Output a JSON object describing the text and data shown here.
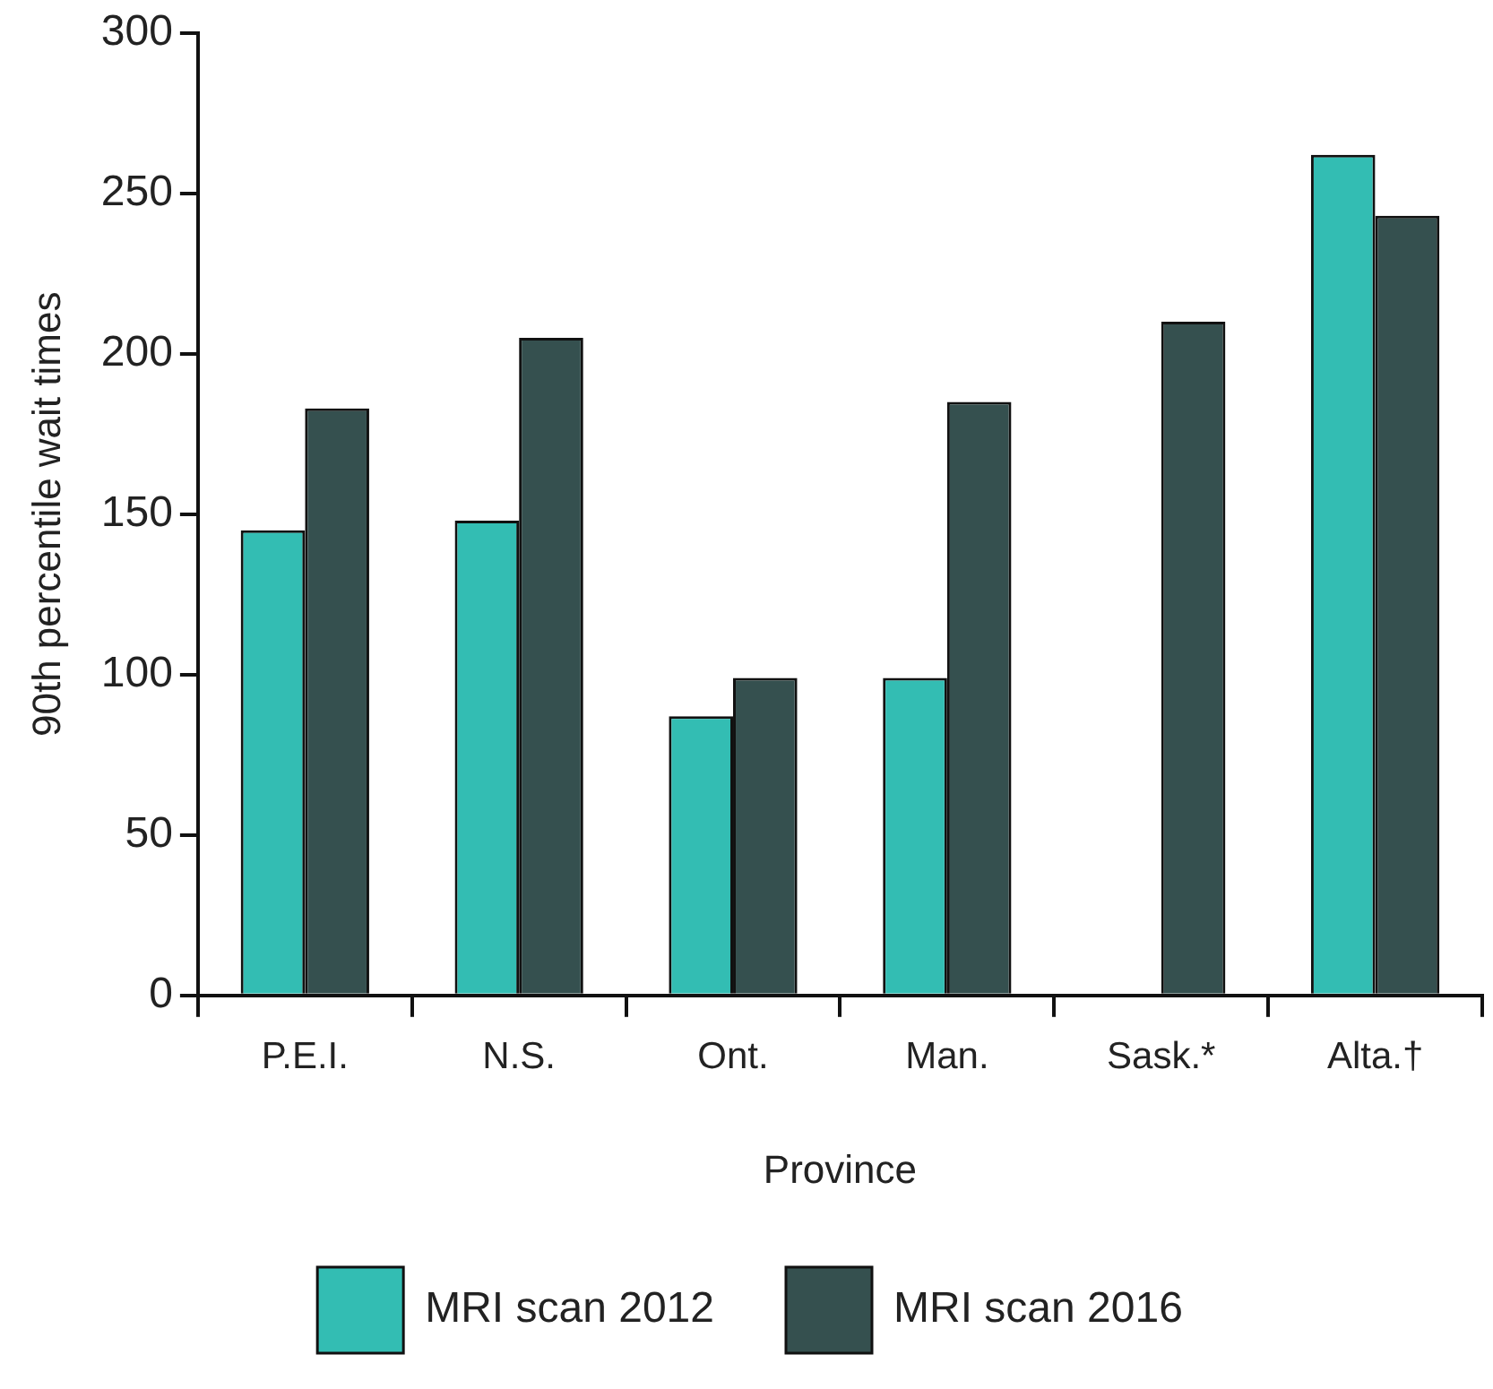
{
  "chart_data": {
    "type": "bar",
    "xlabel": "Province",
    "ylabel": "90th percentile wait times",
    "categories": [
      "P.E.I.",
      "N.S.",
      "Ont.",
      "Man.",
      "Sask.*",
      "Alta.†"
    ],
    "series": [
      {
        "name": "MRI scan 2012",
        "color": "#33bdb3",
        "values": [
          145,
          148,
          87,
          99,
          null,
          262
        ]
      },
      {
        "name": "MRI scan 2016",
        "color": "#35504f",
        "values": [
          183,
          205,
          99,
          185,
          210,
          243
        ]
      }
    ],
    "ylim": [
      0,
      300
    ],
    "yticks": [
      0,
      50,
      100,
      150,
      200,
      250,
      300
    ],
    "grid": false,
    "legend": "bottom"
  }
}
